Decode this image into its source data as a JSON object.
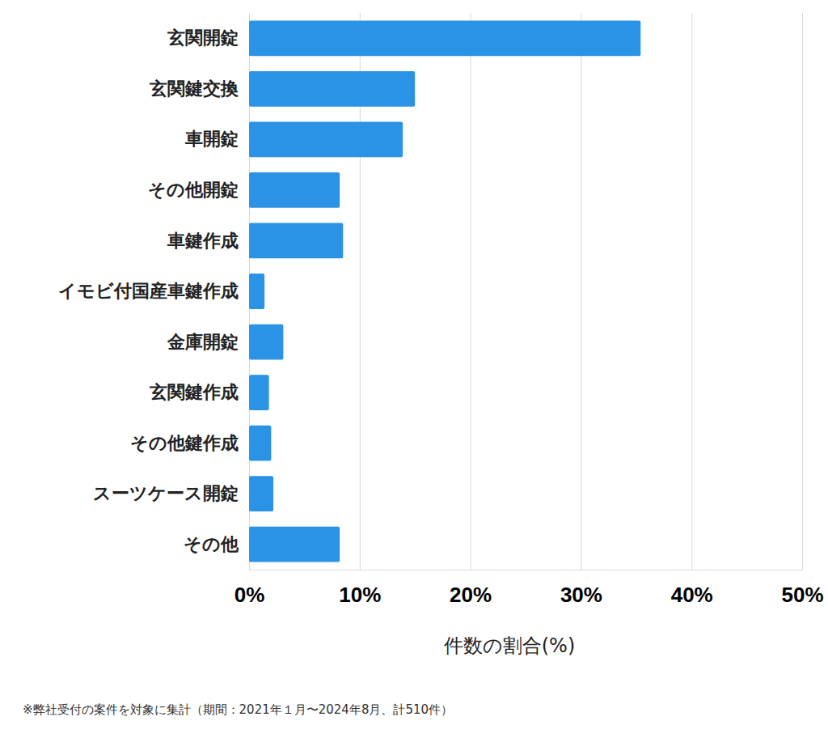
{
  "chart_data": {
    "type": "bar",
    "orientation": "horizontal",
    "categories": [
      "玄関開錠",
      "玄関鍵交換",
      "車開錠",
      "その他開錠",
      "車鍵作成",
      "イモビ付国産車鍵作成",
      "金庫開錠",
      "玄関鍵作成",
      "その他鍵作成",
      "スーツケース開錠",
      "その他"
    ],
    "values": [
      35.4,
      15.0,
      13.9,
      8.2,
      8.5,
      1.4,
      3.1,
      1.8,
      2.0,
      2.2,
      8.2
    ],
    "color": "#2a93e6",
    "xlim": [
      0,
      50
    ],
    "xticks": [
      {
        "value": 0,
        "label": "0%"
      },
      {
        "value": 10,
        "label": "10%"
      },
      {
        "value": 20,
        "label": "20%"
      },
      {
        "value": 30,
        "label": "30%"
      },
      {
        "value": 40,
        "label": "40%"
      },
      {
        "value": 50,
        "label": "50%"
      }
    ],
    "x_label": "件数の割合(%)",
    "annotations": [
      "※弊社受付の案件を対象に集計（期間：2021年１月〜2024年8月、計510件）"
    ],
    "grid": true
  }
}
